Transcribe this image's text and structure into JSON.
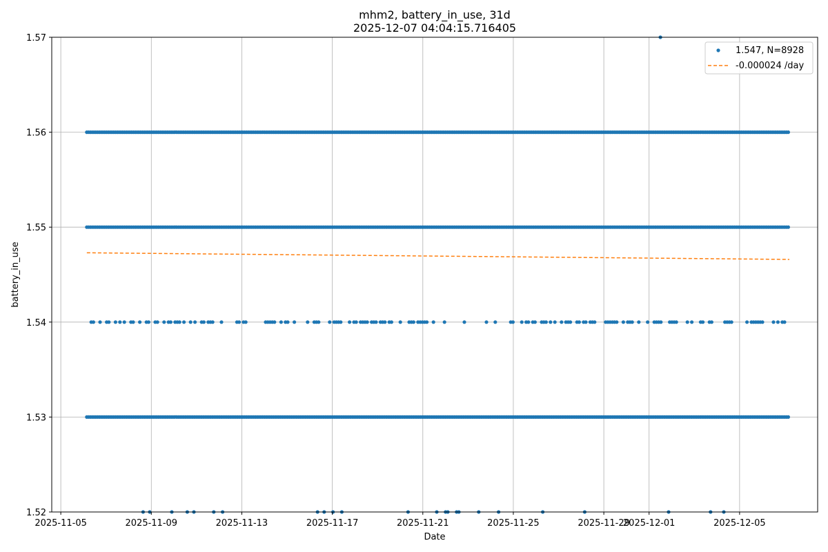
{
  "chart_data": {
    "type": "scatter",
    "title": "mhm2, battery_in_use, 31d",
    "subtitle": "2025-12-07 04:04:15.716405",
    "xlabel": "Date",
    "ylabel": "battery_in_use",
    "xlim": [
      "2025-11-05",
      "2025-12-08"
    ],
    "ylim": [
      1.52,
      1.57
    ],
    "x_ticks": [
      "2025-11-05",
      "2025-11-09",
      "2025-11-13",
      "2025-11-17",
      "2025-11-21",
      "2025-11-25",
      "2025-11-29",
      "2025-12-01",
      "2025-12-05"
    ],
    "y_ticks": [
      "1.52",
      "1.53",
      "1.54",
      "1.55",
      "1.56",
      "1.57"
    ],
    "grid": true,
    "legend_position": "top-right",
    "colors": {
      "points": "#1f77b4",
      "trend": "#ff7f0e"
    },
    "series": [
      {
        "name": "1.547, N=8928",
        "kind": "scatter",
        "levels": [
          {
            "y": 1.56,
            "x_start": "2025-11-06",
            "x_end": "2025-12-07",
            "density": "dense"
          },
          {
            "y": 1.55,
            "x_start": "2025-11-06",
            "x_end": "2025-12-07",
            "density": "dense"
          },
          {
            "y": 1.53,
            "x_start": "2025-11-06",
            "x_end": "2025-12-07",
            "density": "dense"
          },
          {
            "y": 1.54,
            "x_start": "2025-11-06",
            "x_end": "2025-12-07",
            "density": "sparse"
          },
          {
            "y": 1.52,
            "x_start": "2025-11-08",
            "x_end": "2025-12-05",
            "density": "very sparse"
          }
        ],
        "outliers": [
          {
            "x": "2025-12-01",
            "y": 1.57
          }
        ]
      },
      {
        "name": "-0.000024 /day",
        "kind": "line",
        "style": "dashed",
        "points": [
          {
            "x": "2025-11-06",
            "y": 1.5473
          },
          {
            "x": "2025-12-07",
            "y": 1.5466
          }
        ]
      }
    ]
  }
}
